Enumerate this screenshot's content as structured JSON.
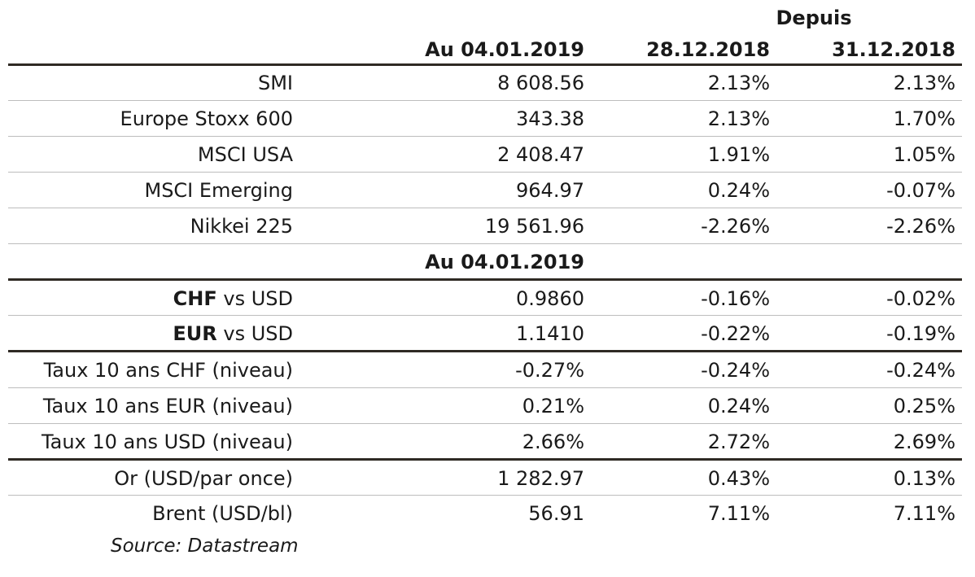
{
  "header": {
    "group_label": "Depuis",
    "col_date": "Au 04.01.2019",
    "col_since1": "28.12.2018",
    "col_since2": "31.12.2018"
  },
  "indices": [
    {
      "name": "SMI",
      "value": "8 608.56",
      "since1": "2.13%",
      "since2": "2.13%"
    },
    {
      "name": "Europe Stoxx 600",
      "value": "343.38",
      "since1": "2.13%",
      "since2": "1.70%"
    },
    {
      "name": "MSCI USA",
      "value": "2 408.47",
      "since1": "1.91%",
      "since2": "1.05%"
    },
    {
      "name": "MSCI Emerging",
      "value": "964.97",
      "since1": "0.24%",
      "since2": "-0.07%"
    },
    {
      "name": "Nikkei 225",
      "value": "19 561.96",
      "since1": "-2.26%",
      "since2": "-2.26%"
    }
  ],
  "subheader": {
    "label": "Au 04.01.2019"
  },
  "fx": [
    {
      "bold": "CHF",
      "rest": " vs USD",
      "value": "0.9860",
      "since1": "-0.16%",
      "since2": "-0.02%"
    },
    {
      "bold": "EUR",
      "rest": " vs USD",
      "value": "1.1410",
      "since1": "-0.22%",
      "since2": "-0.19%"
    }
  ],
  "rates": [
    {
      "name": "Taux 10 ans CHF (niveau)",
      "value": "-0.27%",
      "since1": "-0.24%",
      "since2": "-0.24%"
    },
    {
      "name": "Taux 10 ans EUR (niveau)",
      "value": "0.21%",
      "since1": "0.24%",
      "since2": "0.25%"
    },
    {
      "name": "Taux 10 ans USD (niveau)",
      "value": "2.66%",
      "since1": "2.72%",
      "since2": "2.69%"
    }
  ],
  "commodities": [
    {
      "name": "Or (USD/par once)",
      "value": "1 282.97",
      "since1": "0.43%",
      "since2": "0.13%"
    },
    {
      "name": "Brent (USD/bl)",
      "value": "56.91",
      "since1": "7.11%",
      "since2": "7.11%"
    }
  ],
  "source": "Source: Datastream"
}
